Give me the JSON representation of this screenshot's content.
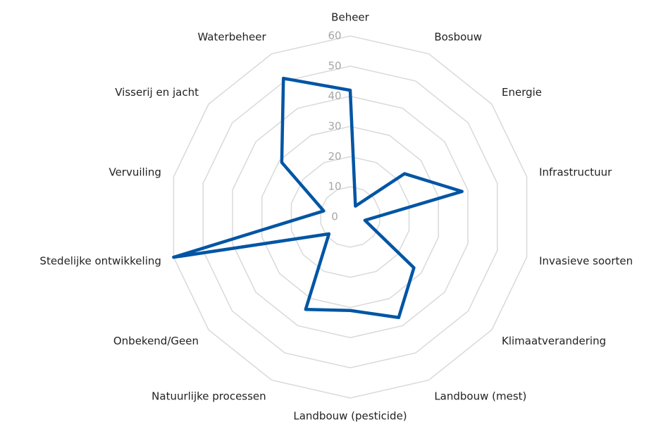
{
  "chart_data": {
    "type": "radar",
    "categories": [
      "Beheer",
      "Bosbouw",
      "Energie",
      "Infrastructuur",
      "Invasieve soorten",
      "Klimaatverandering",
      "Landbouw (mest)",
      "Landbouw (pesticide)",
      "Natuurlijke processen",
      "Onbekend/Geen",
      "Stedelijke ontwikkeling",
      "Vervuiling",
      "Visserij en jacht",
      "Waterbeheer"
    ],
    "values": [
      42,
      4,
      23,
      38,
      5,
      27,
      37,
      31,
      34,
      9,
      60,
      9,
      29,
      51
    ],
    "color": "#0055a4",
    "ylim": [
      0,
      60
    ],
    "yticks": [
      0,
      10,
      20,
      30,
      40,
      50,
      60
    ],
    "grid": true
  }
}
